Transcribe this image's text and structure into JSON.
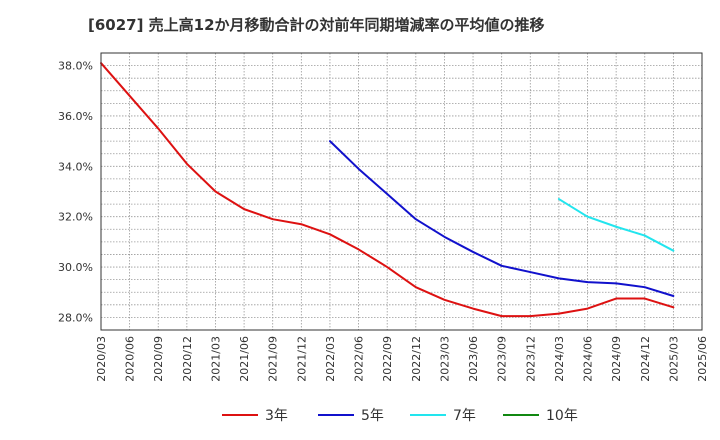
{
  "chart_data": {
    "type": "line",
    "title": "[6027]  売上高12か月移動合計の対前年同期増減率の平均値の推移",
    "xlabel": "",
    "ylabel": "",
    "x": [
      "2020/03",
      "2020/06",
      "2020/09",
      "2020/12",
      "2021/03",
      "2021/06",
      "2021/09",
      "2021/12",
      "2022/03",
      "2022/06",
      "2022/09",
      "2022/12",
      "2023/03",
      "2023/06",
      "2023/09",
      "2023/12",
      "2024/03",
      "2024/06",
      "2024/09",
      "2024/12",
      "2025/03",
      "2025/06"
    ],
    "xlim": [
      "2020/03",
      "2025/06"
    ],
    "ylim": [
      27.5,
      38.5
    ],
    "yticks": [
      28.0,
      30.0,
      32.0,
      34.0,
      36.0,
      38.0
    ],
    "ytick_labels": [
      "28.0%",
      "30.0%",
      "32.0%",
      "34.0%",
      "36.0%",
      "38.0%"
    ],
    "grid": true,
    "legend_position": "bottom",
    "series": [
      {
        "name": "3年",
        "color": "#dd1111",
        "values": [
          38.1,
          36.8,
          35.5,
          34.1,
          33.0,
          32.3,
          31.9,
          31.7,
          31.3,
          30.7,
          30.0,
          29.2,
          28.7,
          28.35,
          28.05,
          28.05,
          28.15,
          28.35,
          28.75,
          28.75,
          28.4,
          null
        ]
      },
      {
        "name": "5年",
        "color": "#1111cc",
        "values": [
          null,
          null,
          null,
          null,
          null,
          null,
          null,
          null,
          35.0,
          33.9,
          32.9,
          31.9,
          31.2,
          30.6,
          30.05,
          29.8,
          29.55,
          29.4,
          29.35,
          29.2,
          28.85,
          null
        ]
      },
      {
        "name": "7年",
        "color": "#22e5ee",
        "values": [
          null,
          null,
          null,
          null,
          null,
          null,
          null,
          null,
          null,
          null,
          null,
          null,
          null,
          null,
          null,
          null,
          32.7,
          32.0,
          31.6,
          31.25,
          30.65,
          null
        ]
      },
      {
        "name": "10年",
        "color": "#118811",
        "values": [
          null,
          null,
          null,
          null,
          null,
          null,
          null,
          null,
          null,
          null,
          null,
          null,
          null,
          null,
          null,
          null,
          null,
          null,
          null,
          null,
          null,
          null
        ]
      }
    ]
  }
}
